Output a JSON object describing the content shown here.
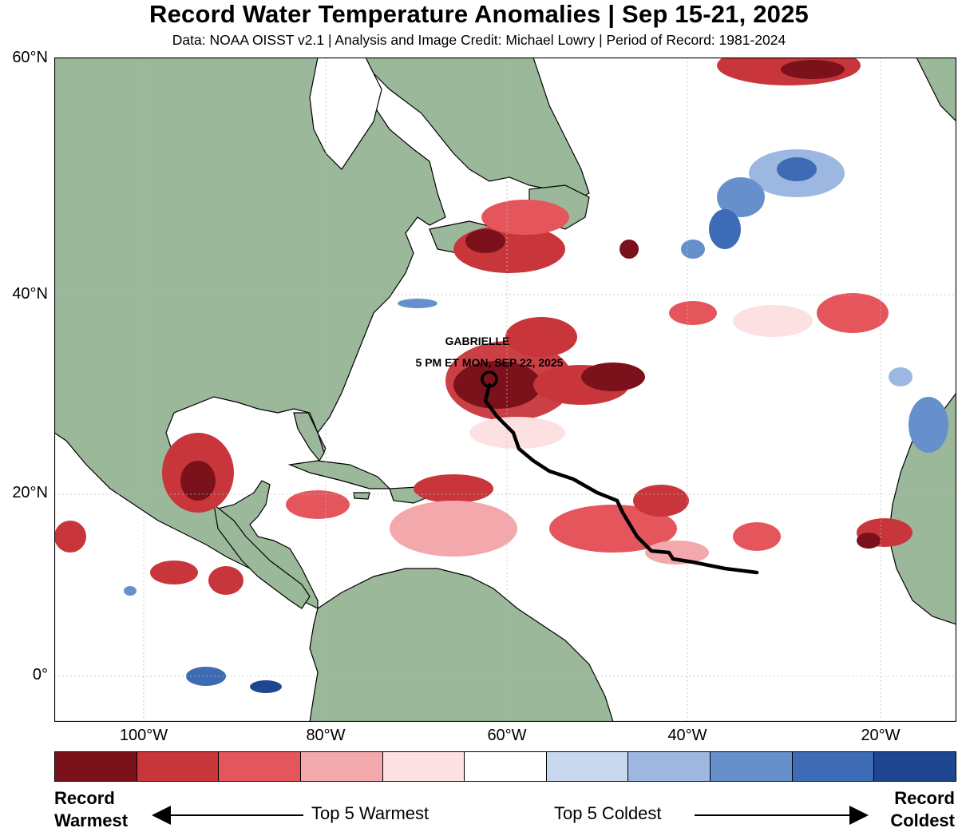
{
  "header": {
    "title": "Record Water Temperature Anomalies | Sep 15-21, 2025",
    "subtitle": "Data: NOAA OISST v2.1 | Analysis and Image Credit: Michael Lowry | Period of Record: 1981-2024"
  },
  "axes": {
    "lat_labels": [
      "60°N",
      "40°N",
      "20°N",
      "0°"
    ],
    "lon_labels": [
      "100°W",
      "80°W",
      "60°W",
      "40°W",
      "20°W"
    ]
  },
  "storm": {
    "name": "GABRIELLE",
    "time": "5 PM ET MON, SEP 22, 2025",
    "track_color": "#000000"
  },
  "colors": {
    "land": "#9bb89b",
    "ocean": "#ffffff",
    "scale": [
      "#7b111a",
      "#c8363b",
      "#e5565c",
      "#f3a8ac",
      "#fde0e2",
      "#ffffff",
      "#c8d8ef",
      "#9db8e0",
      "#6690cc",
      "#3d6bb5",
      "#1f4791"
    ]
  },
  "legend": {
    "left_top": "Record",
    "left_bottom": "Warmest",
    "right_top": "Record",
    "right_bottom": "Coldest",
    "mid_left": "Top 5 Warmest",
    "mid_right": "Top 5 Coldest"
  }
}
